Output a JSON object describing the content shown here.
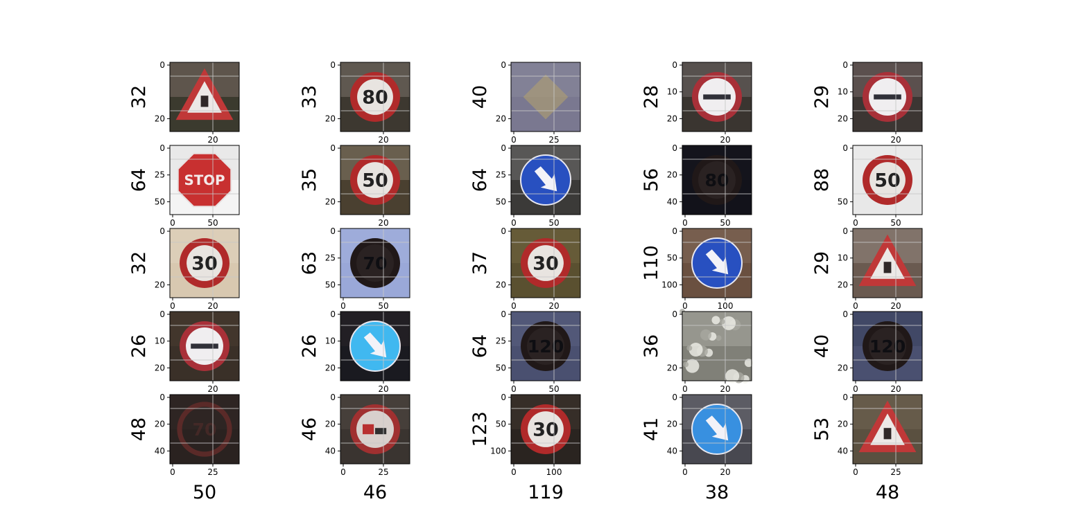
{
  "figure": {
    "panels": [
      {
        "ylabel": "32",
        "xlabel": "",
        "yticks": [
          "0",
          "20"
        ],
        "xticks": [
          "20"
        ],
        "scene": "warning-triangle",
        "palette": [
          "#3b3a2e",
          "#c8a8a8"
        ]
      },
      {
        "ylabel": "33",
        "xlabel": "",
        "yticks": [
          "0",
          "20"
        ],
        "xticks": [
          "20"
        ],
        "scene": "limit-sign",
        "sign_text": "80",
        "palette": [
          "#3d3830",
          "#c8b8b0"
        ]
      },
      {
        "ylabel": "40",
        "xlabel": "",
        "yticks": [
          "0",
          "20"
        ],
        "xticks": [
          "0",
          "25"
        ],
        "scene": "diamond",
        "palette": [
          "#7a7890",
          "#9a9aa8"
        ]
      },
      {
        "ylabel": "28",
        "xlabel": "",
        "yticks": [
          "0",
          "10",
          "20"
        ],
        "xticks": [
          "20"
        ],
        "scene": "no-entry",
        "palette": [
          "#3a3530",
          "#b0a8a8"
        ]
      },
      {
        "ylabel": "29",
        "xlabel": "",
        "yticks": [
          "0",
          "10",
          "20"
        ],
        "xticks": [
          "20"
        ],
        "scene": "no-entry",
        "palette": [
          "#3c3633",
          "#b8a0a0"
        ]
      },
      {
        "ylabel": "64",
        "xlabel": "",
        "yticks": [
          "0",
          "25",
          "50"
        ],
        "xticks": [
          "0",
          "50"
        ],
        "scene": "stop",
        "sign_text": "STOP",
        "palette": [
          "#f4f4f4",
          "#c8c8c8"
        ]
      },
      {
        "ylabel": "35",
        "xlabel": "",
        "yticks": [
          "0",
          "20"
        ],
        "xticks": [
          "20"
        ],
        "scene": "limit-sign",
        "sign_text": "50",
        "palette": [
          "#4a4030",
          "#c8bca8"
        ]
      },
      {
        "ylabel": "64",
        "xlabel": "",
        "yticks": [
          "0",
          "25",
          "50"
        ],
        "xticks": [
          "0",
          "50"
        ],
        "scene": "blue-arrow",
        "palette": [
          "#3b3a38",
          "#b0b0b0"
        ]
      },
      {
        "ylabel": "56",
        "xlabel": "",
        "yticks": [
          "0",
          "20",
          "40"
        ],
        "xticks": [
          "0",
          "50"
        ],
        "scene": "dark-limit",
        "sign_text": "80",
        "palette": [
          "#12121a",
          "#1a1a22"
        ]
      },
      {
        "ylabel": "88",
        "xlabel": "",
        "yticks": [
          "0",
          "50"
        ],
        "xticks": [
          "0",
          "50"
        ],
        "scene": "limit-sign",
        "sign_text": "50",
        "palette": [
          "#e8e8e8",
          "#f0f0f0"
        ]
      },
      {
        "ylabel": "32",
        "xlabel": "",
        "yticks": [
          "0",
          "20"
        ],
        "xticks": [
          "0",
          "20"
        ],
        "scene": "limit-sign",
        "sign_text": "30",
        "palette": [
          "#d8c8b0",
          "#e8e0d0"
        ]
      },
      {
        "ylabel": "63",
        "xlabel": "",
        "yticks": [
          "0",
          "25",
          "50"
        ],
        "xticks": [
          "0",
          "50"
        ],
        "scene": "dark-limit",
        "sign_text": "70",
        "palette": [
          "#9aa8d8",
          "#aab8e0"
        ]
      },
      {
        "ylabel": "37",
        "xlabel": "",
        "yticks": [
          "0",
          "20"
        ],
        "xticks": [
          "0",
          "20"
        ],
        "scene": "limit-sign",
        "sign_text": "30",
        "palette": [
          "#5a5030",
          "#8a7a50"
        ]
      },
      {
        "ylabel": "110",
        "xlabel": "",
        "yticks": [
          "0",
          "50",
          "100"
        ],
        "xticks": [
          "0",
          "100"
        ],
        "scene": "blue-arrow",
        "palette": [
          "#6a5040",
          "#a08878"
        ]
      },
      {
        "ylabel": "29",
        "xlabel": "",
        "yticks": [
          "0",
          "10",
          "20"
        ],
        "xticks": [
          "0",
          "20"
        ],
        "scene": "warning-triangle",
        "palette": [
          "#6a5a50",
          "#c8c0b8"
        ]
      },
      {
        "ylabel": "26",
        "xlabel": "",
        "yticks": [
          "0",
          "10",
          "20"
        ],
        "xticks": [
          "20"
        ],
        "scene": "no-entry",
        "palette": [
          "#3a3028",
          "#5a4838"
        ]
      },
      {
        "ylabel": "26",
        "xlabel": "",
        "yticks": [
          "0",
          "10",
          "20"
        ],
        "xticks": [
          "20"
        ],
        "scene": "cyan-round",
        "palette": [
          "#1a1a20",
          "#3a3030"
        ]
      },
      {
        "ylabel": "64",
        "xlabel": "",
        "yticks": [
          "0",
          "25",
          "50"
        ],
        "xticks": [
          "0",
          "50"
        ],
        "scene": "dark-limit",
        "sign_text": "120",
        "palette": [
          "#4a5070",
          "#6a7090"
        ]
      },
      {
        "ylabel": "36",
        "xlabel": "",
        "yticks": [
          "0",
          "20"
        ],
        "xticks": [
          "0",
          "20"
        ],
        "scene": "bright-noise",
        "palette": [
          "#808078",
          "#d8d8d0"
        ]
      },
      {
        "ylabel": "40",
        "xlabel": "",
        "yticks": [
          "0",
          "20"
        ],
        "xticks": [
          "0",
          "20"
        ],
        "scene": "dark-limit",
        "sign_text": "120",
        "palette": [
          "#4a5070",
          "#283048"
        ]
      },
      {
        "ylabel": "48",
        "xlabel": "50",
        "yticks": [
          "0",
          "20",
          "40"
        ],
        "xticks": [
          "0",
          "25"
        ],
        "scene": "faint-limit",
        "sign_text": "70",
        "palette": [
          "#2a2220",
          "#3a302c"
        ]
      },
      {
        "ylabel": "46",
        "xlabel": "46",
        "yticks": [
          "0",
          "20",
          "40"
        ],
        "xticks": [
          "0",
          "25"
        ],
        "scene": "no-trucks",
        "palette": [
          "#3a3430",
          "#6a6058"
        ]
      },
      {
        "ylabel": "123",
        "xlabel": "119",
        "yticks": [
          "0",
          "50",
          "100"
        ],
        "xticks": [
          "0",
          "100"
        ],
        "scene": "limit-sign",
        "sign_text": "30",
        "palette": [
          "#2a2420",
          "#5a4a40"
        ]
      },
      {
        "ylabel": "41",
        "xlabel": "38",
        "yticks": [
          "0",
          "20",
          "40"
        ],
        "xticks": [
          "0",
          "20"
        ],
        "scene": "blue-arrow-bright",
        "palette": [
          "#484850",
          "#9898a0"
        ]
      },
      {
        "ylabel": "53",
        "xlabel": "48",
        "yticks": [
          "0",
          "20",
          "40"
        ],
        "xticks": [
          "0",
          "25"
        ],
        "scene": "roadworks",
        "palette": [
          "#5a5040",
          "#8a7a68"
        ]
      }
    ]
  }
}
